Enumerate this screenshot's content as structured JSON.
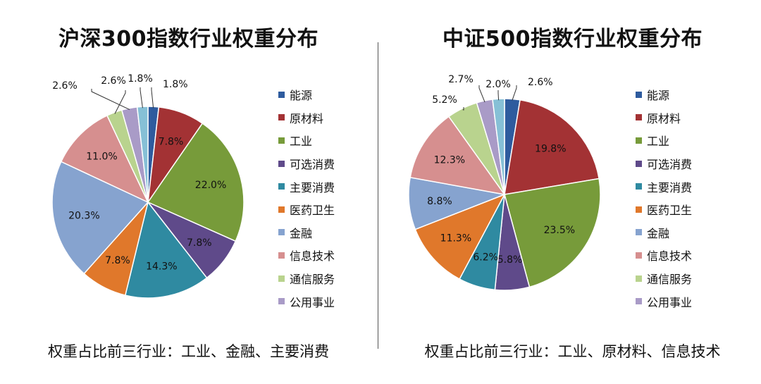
{
  "colors": [
    "#2e5b9e",
    "#a33234",
    "#779b3a",
    "#5f4a8a",
    "#2f8aa1",
    "#e0782b",
    "#86a3cf",
    "#d68f8f",
    "#b9d38e",
    "#a99bc7"
  ],
  "divider": true,
  "chart_data": [
    {
      "type": "pie",
      "title": "沪深300指数行业权重分布",
      "footer": "权重占比前三行业：工业、金融、主要消费",
      "categories": [
        "能源",
        "原材料",
        "工业",
        "可选消费",
        "主要消费",
        "医药卫生",
        "金融",
        "信息技术",
        "通信服务",
        "公用事业"
      ],
      "values": [
        1.8,
        7.8,
        22.0,
        7.8,
        14.3,
        7.8,
        20.3,
        11.0,
        2.6,
        2.6
      ],
      "labels": [
        "1.8%",
        "7.8%",
        "22.0%",
        "7.8%",
        "14.3%",
        "7.8%",
        "20.3%",
        "11.0%",
        "2.6%",
        "2.6%",
        "1.8%"
      ],
      "unlabeled_remainder": 1.8,
      "legend": "right"
    },
    {
      "type": "pie",
      "title": "中证500指数行业权重分布",
      "footer": "权重占比前三行业：工业、原材料、信息技术",
      "categories": [
        "能源",
        "原材料",
        "工业",
        "可选消费",
        "主要消费",
        "医药卫生",
        "金融",
        "信息技术",
        "通信服务",
        "公用事业"
      ],
      "values": [
        2.6,
        19.8,
        23.5,
        5.8,
        6.2,
        11.3,
        8.8,
        12.3,
        5.2,
        2.7
      ],
      "labels": [
        "2.6%",
        "19.8%",
        "23.5%",
        "5.8%",
        "6.2%",
        "11.3%",
        "8.8%",
        "12.3%",
        "5.2%",
        "2.7%",
        "2.0%"
      ],
      "unlabeled_remainder": 2.0,
      "legend": "right"
    }
  ]
}
